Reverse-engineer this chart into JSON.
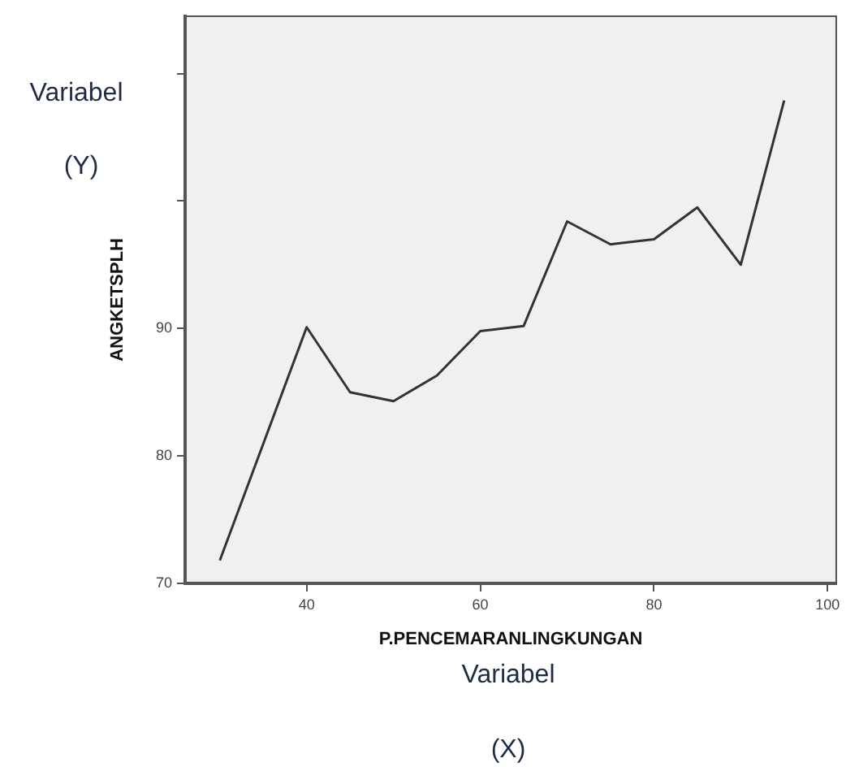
{
  "chart_data": {
    "type": "line",
    "xlabel": "P.PENCEMARANLINGKUNGAN",
    "ylabel": "ANGKETSPLH",
    "x": [
      30,
      40,
      45,
      50,
      55,
      60,
      65,
      70,
      75,
      80,
      85,
      90,
      95
    ],
    "series": [
      {
        "color": "#333333",
        "values": [
          71.8,
          90.1,
          85.0,
          84.3,
          86.3,
          89.8,
          90.2,
          98.4,
          96.6,
          97.0,
          99.5,
          95.0,
          107.9
        ]
      }
    ],
    "xlim": [
      26,
      101
    ],
    "xticks": [
      40,
      60,
      80,
      100
    ],
    "ylim": [
      70,
      114.5
    ],
    "yticks": [
      70,
      80,
      90,
      {
        "value": 100,
        "label": null
      },
      {
        "value": 110,
        "label": null
      }
    ],
    "grid": false,
    "legend": false,
    "marker": "none",
    "line_style": "solid",
    "annotations": [
      "Variabel",
      "(Y)",
      "Variabel",
      "(X)"
    ]
  }
}
